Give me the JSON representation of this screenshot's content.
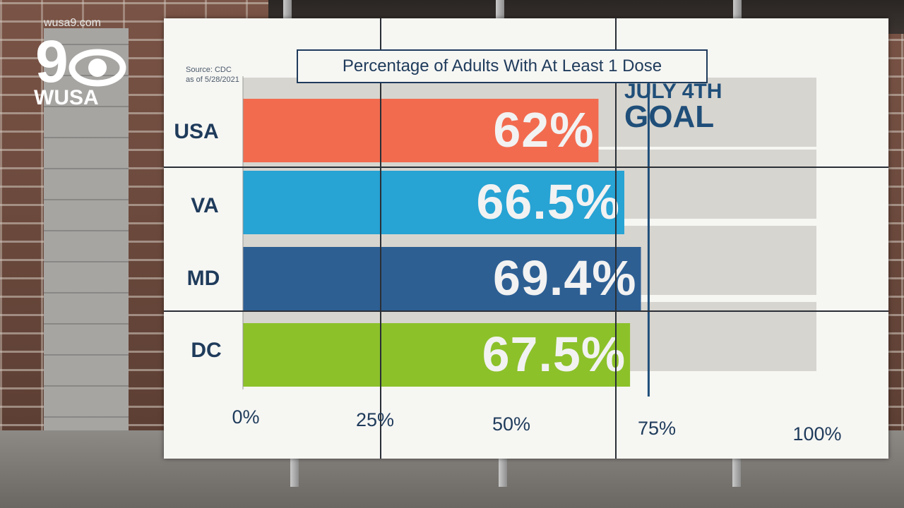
{
  "watermark": {
    "url": "wusa9.com",
    "station": "WUSA",
    "network_number": "9"
  },
  "colors": {
    "usa": "#f26b4f",
    "va": "#27a3d4",
    "md": "#2d5f93",
    "dc": "#8cc12a",
    "track": "#d7d5cf",
    "text": "#1f3b5b"
  },
  "chart_data": {
    "type": "bar",
    "orientation": "horizontal",
    "title": "Percentage of Adults With At Least 1 Dose",
    "source": [
      "Source: CDC",
      "as of 5/28/2021"
    ],
    "categories": [
      "USA",
      "VA",
      "MD",
      "DC"
    ],
    "values": [
      62,
      66.5,
      69.4,
      67.5
    ],
    "value_labels": [
      "62%",
      "66.5%",
      "69.4%",
      "67.5%"
    ],
    "xlim": [
      0,
      100
    ],
    "ticks": [
      "0%",
      "25%",
      "50%",
      "75%",
      "100%"
    ],
    "reference_line": {
      "value": 70,
      "label_line1": "JULY 4TH",
      "label_line2": "GOAL"
    }
  }
}
